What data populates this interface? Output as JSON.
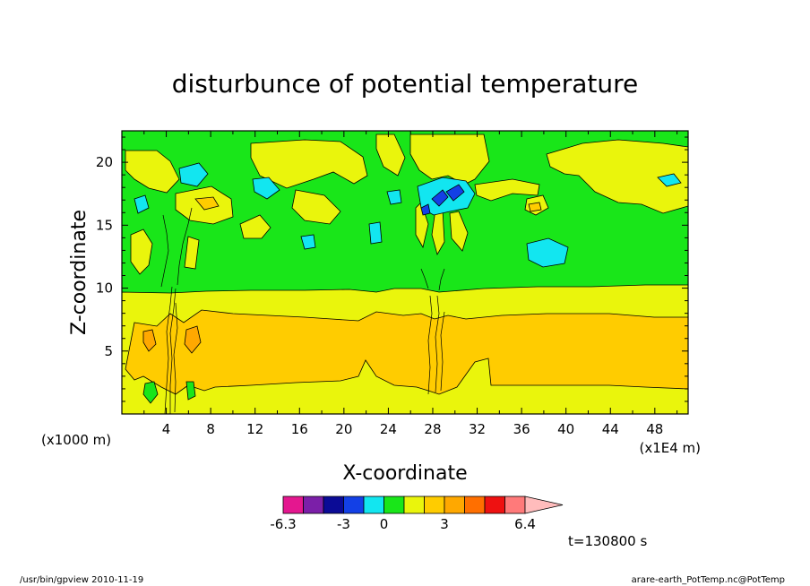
{
  "chart_data": {
    "type": "heatmap",
    "title": "disturbunce of potential temperature",
    "xlabel": "X-coordinate",
    "ylabel": "Z-coordinate",
    "x_unit": "(x1E4 m)",
    "y_unit": "(x1000 m)",
    "xlim": [
      0,
      51
    ],
    "ylim": [
      0,
      22.5
    ],
    "x_ticks": [
      4,
      8,
      12,
      16,
      20,
      24,
      28,
      32,
      36,
      40,
      44,
      48
    ],
    "y_ticks": [
      5,
      10,
      15,
      20
    ],
    "colorbar": {
      "colors": [
        "#e4178f",
        "#7b1fa8",
        "#0b0b96",
        "#1340e6",
        "#12e6f0",
        "#19e619",
        "#eaf50c",
        "#ffcc00",
        "#ffa800",
        "#ff6f00",
        "#ee1111",
        "#ff7a7a",
        "#ffbcbc"
      ],
      "tick_labels": [
        "-6.3",
        "-3",
        "0",
        "3",
        "6.4"
      ],
      "extend": "max"
    },
    "time_label": "t=130800 s",
    "field_description": "background +0..1 (green); layer 0..1.5 at z 0-10 (yellow), 1.5..3 core at z 2-8 (orange); perturbations near x~4-6 and x~26-31"
  },
  "footer": {
    "left": "/usr/bin/gpview   2010-11-19",
    "right": "arare-earth_PotTemp.nc@PotTemp"
  }
}
